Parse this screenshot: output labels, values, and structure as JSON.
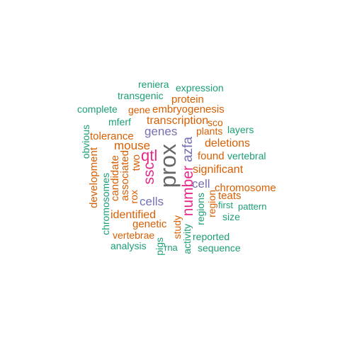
{
  "words": {
    "reniera": "reniera",
    "expression": "expression",
    "transgenic": "transgenic",
    "protein": "protein",
    "complete": "complete",
    "gene": "gene",
    "embryogenesis": "embryogenesis",
    "mferf": "mferf",
    "transcription": "transcription",
    "sco": "sco",
    "obvious": "obvious",
    "genes": "genes",
    "plants": "plants",
    "layers": "layers",
    "tolerance": "tolerance",
    "mouse": "mouse",
    "deletions": "deletions",
    "development": "development",
    "two": "two",
    "qtl": "qtl",
    "prox": "prox",
    "azfa": "azfa",
    "found": "found",
    "vertebral": "vertebral",
    "chromosomes": "chromosomes",
    "candidate": "candidate",
    "associated": "associated",
    "ssc": "ssc",
    "significant": "significant",
    "number": "number",
    "cell": "cell",
    "chromosome": "chromosome",
    "rox": "rox",
    "cells": "cells",
    "teats": "teats",
    "regions": "regions",
    "region": "region",
    "first": "first",
    "pattern": "pattern",
    "identified": "identified",
    "size": "size",
    "genetic": "genetic",
    "study": "study",
    "vertebrae": "vertebrae",
    "activity": "activity",
    "reported": "reported",
    "analysis": "analysis",
    "pigs": "pigs",
    "rna": "rna",
    "sequence": "sequence"
  },
  "palette": {
    "green": "#1b9e77",
    "orange": "#d95f02",
    "purple": "#7570b3",
    "magenta": "#e7298a",
    "gray": "#666666"
  }
}
